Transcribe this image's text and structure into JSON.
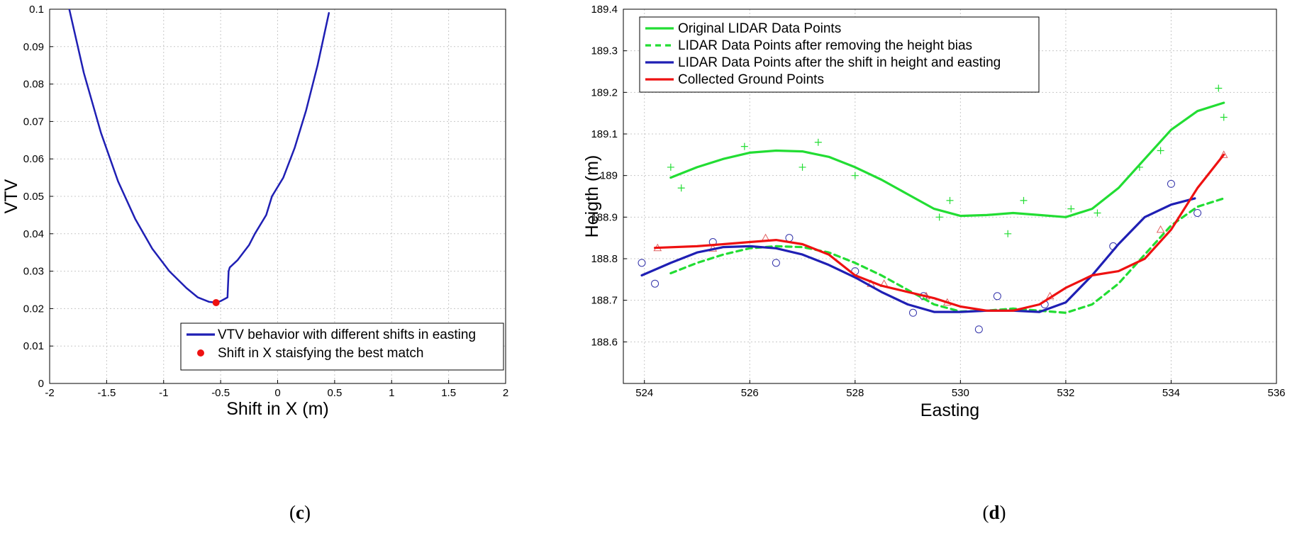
{
  "chart_data": [
    {
      "type": "line",
      "panel_label": "c",
      "xlabel": "Shift in X (m)",
      "ylabel": "VTV",
      "xlim": [
        -2,
        2
      ],
      "ylim": [
        0,
        0.1
      ],
      "xticks": [
        "-2",
        "-1.5",
        "-1",
        "-0.5",
        "0",
        "0.5",
        "1",
        "1.5",
        "2"
      ],
      "yticks": [
        "0",
        "0.01",
        "0.02",
        "0.03",
        "0.04",
        "0.05",
        "0.06",
        "0.07",
        "0.08",
        "0.09",
        "0.1"
      ],
      "grid": true,
      "legend_position": "bottom-right",
      "series": [
        {
          "name": "VTV behavior with different shifts in easting",
          "color": "#1f1fb4",
          "style": "solid",
          "x": [
            -1.85,
            -1.7,
            -1.55,
            -1.4,
            -1.25,
            -1.1,
            -0.95,
            -0.8,
            -0.7,
            -0.6,
            -0.54,
            -0.5,
            -0.44,
            -0.43,
            -0.42,
            -0.35,
            -0.25,
            -0.2,
            -0.1,
            -0.05,
            0.05,
            0.15,
            0.25,
            0.35,
            0.45
          ],
          "y": [
            0.103,
            0.083,
            0.067,
            0.054,
            0.044,
            0.036,
            0.03,
            0.0255,
            0.023,
            0.0218,
            0.0216,
            0.022,
            0.023,
            0.03,
            0.031,
            0.033,
            0.037,
            0.04,
            0.045,
            0.05,
            0.055,
            0.063,
            0.073,
            0.085,
            0.099
          ]
        },
        {
          "name": "Shift in X staisfying the best match",
          "color": "#ee1111",
          "style": "marker",
          "x": [
            -0.54
          ],
          "y": [
            0.0216
          ]
        }
      ]
    },
    {
      "type": "line",
      "panel_label": "d",
      "xlabel": "Easting",
      "ylabel": "Heigth (m)",
      "xlim": [
        523.6,
        536
      ],
      "ylim": [
        188.5,
        189.4
      ],
      "xticks": [
        "524",
        "526",
        "528",
        "530",
        "532",
        "534",
        "536"
      ],
      "yticks": [
        "188.6",
        "188.7",
        "188.8",
        "188.9",
        "189",
        "189.1",
        "189.2",
        "189.3",
        "189.4"
      ],
      "grid": true,
      "legend_position": "top-left",
      "series": [
        {
          "name": "Original LIDAR Data Points",
          "color": "#22dd33",
          "style": "solid",
          "x": [
            524.5,
            525.0,
            525.5,
            526.0,
            526.5,
            527.0,
            527.5,
            528.0,
            528.5,
            529.0,
            529.5,
            530.0,
            530.5,
            531.0,
            531.5,
            532.0,
            532.5,
            533.0,
            533.5,
            534.0,
            534.5,
            535.0
          ],
          "y": [
            188.995,
            189.02,
            189.04,
            189.055,
            189.06,
            189.058,
            189.045,
            189.02,
            188.99,
            188.955,
            188.92,
            188.903,
            188.905,
            188.91,
            188.905,
            188.9,
            188.92,
            188.97,
            189.04,
            189.11,
            189.155,
            189.175
          ]
        },
        {
          "name": "LIDAR Data Points after removing the height bias",
          "color": "#22dd33",
          "style": "dashed",
          "x": [
            524.5,
            525.0,
            525.5,
            526.0,
            526.5,
            527.0,
            527.5,
            528.0,
            528.5,
            529.0,
            529.5,
            530.0,
            530.5,
            531.0,
            531.5,
            532.0,
            532.5,
            533.0,
            533.5,
            534.0,
            534.5,
            535.0
          ],
          "y": [
            188.765,
            188.79,
            188.81,
            188.825,
            188.83,
            188.828,
            188.815,
            188.79,
            188.76,
            188.725,
            188.69,
            188.673,
            188.675,
            188.68,
            188.675,
            188.67,
            188.69,
            188.74,
            188.81,
            188.88,
            188.925,
            188.945
          ]
        },
        {
          "name": "LIDAR Data Points after the shift in height and easting",
          "color": "#1f1fb4",
          "style": "solid",
          "x": [
            523.95,
            524.5,
            525.0,
            525.5,
            526.0,
            526.5,
            527.0,
            527.5,
            528.0,
            528.5,
            529.0,
            529.5,
            530.0,
            530.5,
            531.0,
            531.5,
            532.0,
            532.5,
            533.0,
            533.5,
            534.0,
            534.45
          ],
          "y": [
            188.76,
            188.79,
            188.815,
            188.828,
            188.83,
            188.825,
            188.81,
            188.785,
            188.755,
            188.72,
            188.69,
            188.672,
            188.672,
            188.675,
            188.675,
            188.672,
            188.695,
            188.76,
            188.835,
            188.9,
            188.93,
            188.945
          ]
        },
        {
          "name": "Collected Ground Points",
          "color": "#ee1111",
          "style": "solid",
          "x": [
            524.2,
            525.0,
            525.5,
            526.0,
            526.5,
            527.0,
            527.5,
            528.0,
            528.5,
            529.0,
            529.5,
            530.0,
            530.5,
            531.0,
            531.5,
            532.0,
            532.5,
            533.0,
            533.5,
            534.0,
            534.5,
            535.0
          ],
          "y": [
            188.826,
            188.83,
            188.835,
            188.84,
            188.845,
            188.835,
            188.81,
            188.76,
            188.735,
            188.72,
            188.705,
            188.685,
            188.675,
            188.675,
            188.69,
            188.73,
            188.76,
            188.77,
            188.8,
            188.87,
            188.97,
            189.05
          ]
        }
      ],
      "scatter": [
        {
          "marker": "plus",
          "color": "#22dd33",
          "x": [
            524.5,
            524.7,
            525.9,
            527.0,
            527.3,
            528.0,
            529.6,
            529.8,
            530.9,
            531.2,
            532.1,
            532.6,
            533.4,
            533.8,
            534.9,
            535.0
          ],
          "y": [
            189.02,
            188.97,
            189.07,
            189.02,
            189.08,
            189.0,
            188.9,
            188.94,
            188.86,
            188.94,
            188.92,
            188.91,
            189.02,
            189.06,
            189.21,
            189.14
          ]
        },
        {
          "marker": "circle",
          "color": "#3333aa",
          "x": [
            523.95,
            524.2,
            525.3,
            526.5,
            526.75,
            528.0,
            529.1,
            529.3,
            530.35,
            530.7,
            531.6,
            532.9,
            534.0,
            534.5
          ],
          "y": [
            188.79,
            188.74,
            188.84,
            188.79,
            188.85,
            188.77,
            188.67,
            188.71,
            188.63,
            188.71,
            188.69,
            188.83,
            188.98,
            188.91
          ]
        },
        {
          "marker": "triangle",
          "color": "#e06060",
          "x": [
            524.25,
            525.3,
            526.3,
            528.3,
            528.55,
            529.35,
            529.75,
            531.7,
            533.8,
            535.0
          ],
          "y": [
            188.826,
            188.825,
            188.85,
            188.74,
            188.74,
            188.71,
            188.695,
            188.71,
            188.87,
            189.05
          ]
        }
      ]
    }
  ]
}
